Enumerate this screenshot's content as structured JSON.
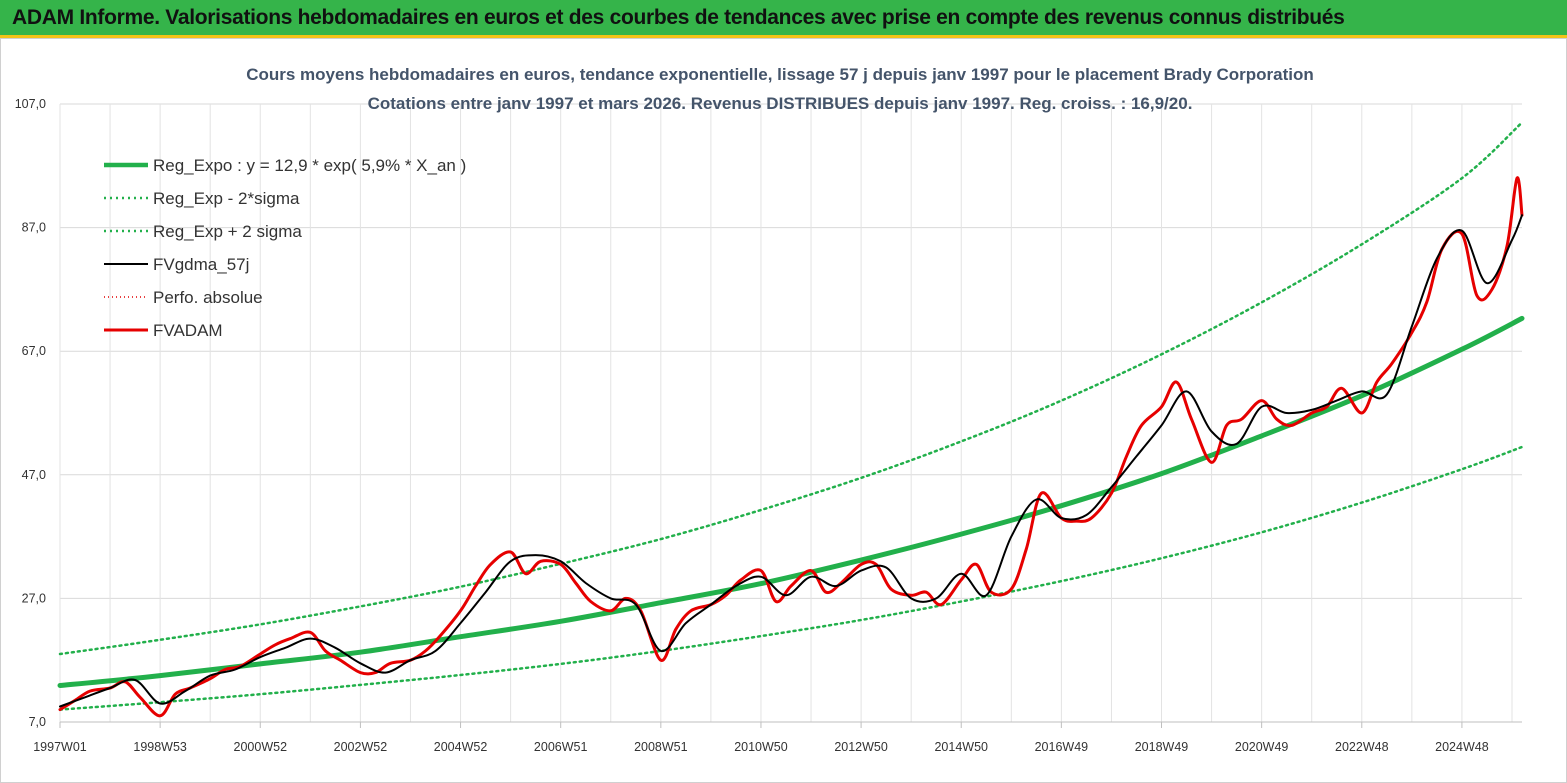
{
  "header": {
    "title": "ADAM Informe. Valorisations hebdomadaires en euros et des courbes de tendances avec prise en compte des revenus connus distribués"
  },
  "colors": {
    "banner": "#35b44a",
    "accent_bar": "#f2c318",
    "trend": "#22b04b",
    "sigma": "#22b04b",
    "smoothed": "#000000",
    "perf": "#e00000",
    "fvadam": "#e60000",
    "title_text": "#44546a"
  },
  "chart_data": {
    "type": "line",
    "title": "Cours moyens hebdomadaires en euros, tendance exponentielle, lissage 57 j depuis janv 1997 pour le placement Brady Corporation",
    "subtitle": "Cotations entre janv 1997 et mars 2026. Revenus DISTRIBUES depuis janv 1997. Reg. croiss. : 16,9/20.",
    "xlabel": "",
    "ylabel": "",
    "x_range": [
      1997.0,
      2026.2
    ],
    "ylim": [
      7.0,
      107.0
    ],
    "y_ticks": [
      "107,0",
      "87,0",
      "67,0",
      "47,0",
      "27,0",
      "7,0"
    ],
    "y_tick_values": [
      107,
      87,
      67,
      47,
      27,
      7
    ],
    "x_ticks": [
      "1997W01",
      "1998W53",
      "2000W52",
      "2002W52",
      "2004W52",
      "2006W51",
      "2008W51",
      "2010W50",
      "2012W50",
      "2014W50",
      "2016W49",
      "2018W49",
      "2020W49",
      "2022W48",
      "2024W48"
    ],
    "x_tick_values": [
      1997.0,
      1999.0,
      2001.0,
      2003.0,
      2005.0,
      2007.0,
      2009.0,
      2011.0,
      2013.0,
      2015.0,
      2017.0,
      2019.0,
      2021.0,
      2023.0,
      2025.0
    ],
    "grid": "vertical and horizontal",
    "legend_position": "top-left",
    "series": [
      {
        "name": "Reg_Expo : y = 12,9 * exp( 5,9% *  X_an )",
        "style": "solid-thick",
        "x": [
          1997.0,
          1999.0,
          2001.0,
          2003.0,
          2005.0,
          2007.0,
          2009.0,
          2011.0,
          2013.0,
          2015.0,
          2017.0,
          2019.0,
          2021.0,
          2023.0,
          2025.0,
          2026.2
        ],
        "values": [
          12.9,
          14.5,
          16.4,
          18.3,
          20.8,
          23.3,
          26.3,
          29.4,
          33.2,
          37.4,
          42.0,
          47.2,
          53.3,
          59.8,
          67.3,
          72.3
        ]
      },
      {
        "name": "Reg_Exp - 2*sigma",
        "style": "dotted",
        "x": [
          1997.0,
          1999.0,
          2001.0,
          2003.0,
          2005.0,
          2007.0,
          2009.0,
          2011.0,
          2013.0,
          2015.0,
          2017.0,
          2019.0,
          2021.0,
          2023.0,
          2025.0,
          2026.2
        ],
        "values": [
          9.0,
          10.2,
          11.5,
          13.0,
          14.6,
          16.4,
          18.5,
          20.9,
          23.5,
          26.5,
          29.8,
          33.5,
          37.7,
          42.5,
          47.9,
          51.5
        ]
      },
      {
        "name": "Reg_Exp + 2 sigma",
        "style": "dotted",
        "x": [
          1997.0,
          1999.0,
          2001.0,
          2003.0,
          2005.0,
          2007.0,
          2009.0,
          2011.0,
          2013.0,
          2015.0,
          2017.0,
          2019.0,
          2021.0,
          2023.0,
          2025.0,
          2026.2
        ],
        "values": [
          18.0,
          20.3,
          22.8,
          25.7,
          28.9,
          32.6,
          36.6,
          41.3,
          46.5,
          52.4,
          59.0,
          66.5,
          74.9,
          84.3,
          95.0,
          104.0
        ]
      },
      {
        "name": "FVgdma_57j",
        "style": "solid-thin",
        "x": [
          1997.0,
          1997.5,
          1998.0,
          1998.5,
          1999.0,
          1999.5,
          2000.0,
          2000.5,
          2001.0,
          2001.5,
          2002.0,
          2002.5,
          2003.0,
          2003.5,
          2004.0,
          2004.5,
          2005.0,
          2005.5,
          2006.0,
          2006.5,
          2007.0,
          2007.5,
          2008.0,
          2008.5,
          2009.0,
          2009.5,
          2010.0,
          2010.5,
          2011.0,
          2011.5,
          2012.0,
          2012.5,
          2013.0,
          2013.5,
          2014.0,
          2014.5,
          2015.0,
          2015.5,
          2016.0,
          2016.5,
          2017.0,
          2017.5,
          2018.0,
          2018.5,
          2019.0,
          2019.5,
          2020.0,
          2020.5,
          2021.0,
          2021.5,
          2022.0,
          2022.5,
          2023.0,
          2023.5,
          2024.0,
          2024.5,
          2025.0,
          2025.5,
          2026.0,
          2026.2
        ],
        "values": [
          9.5,
          11.0,
          12.5,
          13.8,
          10.0,
          12.0,
          14.5,
          15.5,
          17.5,
          19.0,
          20.5,
          19.0,
          16.5,
          15.0,
          17.0,
          18.5,
          23.0,
          28.0,
          33.0,
          34.0,
          33.0,
          29.5,
          27.0,
          26.0,
          18.5,
          23.0,
          26.0,
          29.0,
          30.5,
          27.5,
          30.5,
          29.0,
          31.5,
          32.0,
          27.0,
          27.0,
          31.0,
          27.5,
          37.0,
          43.0,
          40.0,
          40.5,
          45.0,
          50.0,
          55.0,
          60.5,
          54.0,
          52.0,
          58.0,
          57.0,
          57.5,
          59.0,
          60.5,
          60.0,
          71.0,
          82.0,
          86.5,
          78.0,
          85.0,
          89.0
        ]
      },
      {
        "name": "Perfo. absolue",
        "style": "dotted",
        "x": [
          1997.0,
          1998.0,
          1999.0,
          2000.0,
          2001.0,
          2002.0,
          2003.0,
          2004.0,
          2005.0,
          2006.0,
          2007.0,
          2008.0,
          2009.0,
          2010.0,
          2011.0,
          2012.0,
          2013.0,
          2014.0,
          2015.0,
          2016.0,
          2017.0,
          2018.0,
          2019.0,
          2020.0,
          2021.0,
          2022.0,
          2023.0,
          2024.0,
          2025.0,
          2026.0
        ],
        "values": [
          9.5,
          12.5,
          10.0,
          14.5,
          17.5,
          20.5,
          16.5,
          17.0,
          23.0,
          33.0,
          33.0,
          27.0,
          18.5,
          26.0,
          30.5,
          30.5,
          31.5,
          27.0,
          31.0,
          37.0,
          40.0,
          45.0,
          55.0,
          54.0,
          58.0,
          57.5,
          60.5,
          71.0,
          86.5,
          85.0
        ]
      },
      {
        "name": "FVADAM",
        "style": "solid-thick",
        "x": [
          1997.0,
          1997.3,
          1997.6,
          1998.0,
          1998.3,
          1998.6,
          1999.0,
          1999.3,
          1999.6,
          2000.0,
          2000.3,
          2000.6,
          2001.0,
          2001.3,
          2001.6,
          2002.0,
          2002.3,
          2002.6,
          2003.0,
          2003.3,
          2003.6,
          2004.0,
          2004.3,
          2004.6,
          2005.0,
          2005.3,
          2005.6,
          2006.0,
          2006.3,
          2006.6,
          2007.0,
          2007.3,
          2007.6,
          2008.0,
          2008.3,
          2008.6,
          2009.0,
          2009.3,
          2009.6,
          2010.0,
          2010.3,
          2010.6,
          2011.0,
          2011.3,
          2011.6,
          2012.0,
          2012.3,
          2012.6,
          2013.0,
          2013.3,
          2013.6,
          2014.0,
          2014.3,
          2014.6,
          2015.0,
          2015.3,
          2015.6,
          2016.0,
          2016.3,
          2016.6,
          2017.0,
          2017.3,
          2017.6,
          2018.0,
          2018.3,
          2018.6,
          2019.0,
          2019.3,
          2019.6,
          2020.0,
          2020.3,
          2020.6,
          2021.0,
          2021.3,
          2021.6,
          2022.0,
          2022.3,
          2022.6,
          2023.0,
          2023.3,
          2023.6,
          2024.0,
          2024.3,
          2024.6,
          2025.0,
          2025.3,
          2025.6,
          2025.9,
          2026.1,
          2026.2
        ],
        "values": [
          9.0,
          10.5,
          12.0,
          12.5,
          13.5,
          11.0,
          8.0,
          11.5,
          12.5,
          14.0,
          15.5,
          16.0,
          18.0,
          19.5,
          20.5,
          21.5,
          18.5,
          17.0,
          15.0,
          15.0,
          16.5,
          17.0,
          18.5,
          21.0,
          25.0,
          29.0,
          32.5,
          34.5,
          31.0,
          33.0,
          32.5,
          29.5,
          26.5,
          25.0,
          27.0,
          25.0,
          17.0,
          22.0,
          25.0,
          26.0,
          27.5,
          30.0,
          31.5,
          26.5,
          29.0,
          31.5,
          28.0,
          29.5,
          32.5,
          32.5,
          28.5,
          27.5,
          28.0,
          26.0,
          30.0,
          32.5,
          28.0,
          28.5,
          35.0,
          44.0,
          40.0,
          39.5,
          40.0,
          44.0,
          50.0,
          55.0,
          58.0,
          62.0,
          56.0,
          49.0,
          55.0,
          56.0,
          59.0,
          56.0,
          55.0,
          57.0,
          58.0,
          61.0,
          57.0,
          62.0,
          65.0,
          70.0,
          75.0,
          83.5,
          86.0,
          76.0,
          77.0,
          84.0,
          95.0,
          89.0
        ]
      }
    ]
  }
}
